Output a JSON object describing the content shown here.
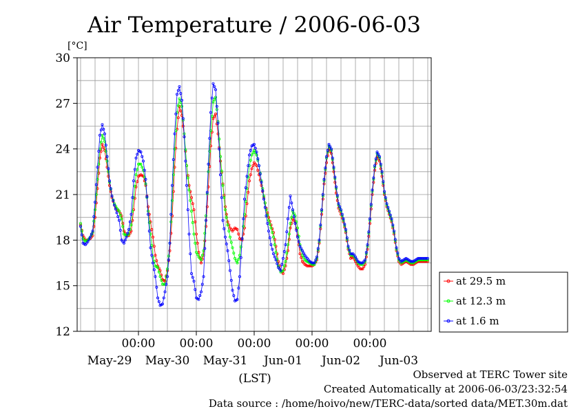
{
  "chart_data": {
    "type": "line",
    "title": "Air Temperature / 2006-06-03",
    "ylabel": "[°C]",
    "xlabel": "(LST)",
    "ylim": [
      12,
      30
    ],
    "yticks": [
      12,
      15,
      18,
      21,
      24,
      27,
      30
    ],
    "xlim_hours": [
      0,
      144
    ],
    "time_ticks": [
      "00:00",
      "00:00",
      "00:00",
      "00:00",
      "00:00"
    ],
    "date_labels": [
      "May-29",
      "May-30",
      "May-31",
      "Jun-01",
      "Jun-02",
      "Jun-03"
    ],
    "grid": true,
    "legend_position": "right",
    "series": [
      {
        "name": "at 29.5 m",
        "color": "#ff0000",
        "x": [
          0,
          1,
          2,
          3,
          4,
          5,
          6,
          7,
          8,
          9,
          10,
          11,
          12,
          13,
          14,
          15,
          16,
          17,
          18,
          19,
          20,
          21,
          22,
          23,
          24,
          25,
          26,
          27,
          28,
          29,
          30,
          31,
          32,
          33,
          34,
          35,
          36,
          37,
          38,
          39,
          40,
          41,
          42,
          43,
          44,
          45,
          46,
          47,
          48,
          49,
          50,
          51,
          52,
          53,
          54,
          55,
          56,
          57,
          58,
          59,
          60,
          61,
          62,
          63,
          64,
          65,
          66,
          67,
          68,
          69,
          70,
          71,
          72,
          73,
          74,
          75,
          76,
          77,
          78,
          79,
          80,
          81,
          82,
          83,
          84,
          85,
          86,
          87,
          88,
          89,
          90,
          91,
          92,
          93,
          94,
          95,
          96,
          97,
          98,
          99,
          100,
          101,
          102,
          103,
          104,
          105,
          106,
          107,
          108,
          109,
          110,
          111,
          112,
          113,
          114,
          115,
          116,
          117,
          118,
          119,
          120,
          121,
          122,
          123,
          124,
          125,
          126,
          127,
          128,
          129,
          130,
          131,
          132,
          133,
          134,
          135,
          136,
          137,
          138,
          139,
          140,
          141,
          142,
          143,
          144
        ],
        "values": [
          19.0,
          18.3,
          18.0,
          18.0,
          18.1,
          18.3,
          19.5,
          21.4,
          23.4,
          24.3,
          23.9,
          22.8,
          21.6,
          20.8,
          20.3,
          20.0,
          19.9,
          19.6,
          18.6,
          18.3,
          18.3,
          18.6,
          20.0,
          21.5,
          22.2,
          22.3,
          22.2,
          21.6,
          20.2,
          19.2,
          18.2,
          17.0,
          16.3,
          16.0,
          15.4,
          15.3,
          16.0,
          17.3,
          19.6,
          22.8,
          25.3,
          26.8,
          26.2,
          24.8,
          22.9,
          21.6,
          20.8,
          20.0,
          18.4,
          17.2,
          16.5,
          17.0,
          18.9,
          21.5,
          24.2,
          26.0,
          26.3,
          25.0,
          23.2,
          21.7,
          20.2,
          19.2,
          18.8,
          18.6,
          18.8,
          18.7,
          18.1,
          18.0,
          18.8,
          20.4,
          21.9,
          22.7,
          23.1,
          22.9,
          22.3,
          21.6,
          20.8,
          20.1,
          19.5,
          19.0,
          18.5,
          17.6,
          16.6,
          16.0,
          15.8,
          16.3,
          17.3,
          18.8,
          19.4,
          19.2,
          18.3,
          17.1,
          16.6,
          16.4,
          16.3,
          16.3,
          16.3,
          16.4,
          16.7,
          17.8,
          19.7,
          21.7,
          23.1,
          24.0,
          23.7,
          22.5,
          21.1,
          20.1,
          19.7,
          19.2,
          18.5,
          17.4,
          16.8,
          16.9,
          16.6,
          16.3,
          16.1,
          16.1,
          16.4,
          17.4,
          19.1,
          21.0,
          22.6,
          23.5,
          23.2,
          22.2,
          21.0,
          20.2,
          19.7,
          19.2,
          18.4,
          17.3,
          16.6,
          16.4,
          16.5,
          16.6,
          16.5,
          16.4,
          16.4,
          16.5,
          16.6,
          16.6,
          16.6,
          16.6,
          16.6
        ]
      },
      {
        "name": "at 12.3 m",
        "color": "#00ff00",
        "x": [
          0,
          1,
          2,
          3,
          4,
          5,
          6,
          7,
          8,
          9,
          10,
          11,
          12,
          13,
          14,
          15,
          16,
          17,
          18,
          19,
          20,
          21,
          22,
          23,
          24,
          25,
          26,
          27,
          28,
          29,
          30,
          31,
          32,
          33,
          34,
          35,
          36,
          37,
          38,
          39,
          40,
          41,
          42,
          43,
          44,
          45,
          46,
          47,
          48,
          49,
          50,
          51,
          52,
          53,
          54,
          55,
          56,
          57,
          58,
          59,
          60,
          61,
          62,
          63,
          64,
          65,
          66,
          67,
          68,
          69,
          70,
          71,
          72,
          73,
          74,
          75,
          76,
          77,
          78,
          79,
          80,
          81,
          82,
          83,
          84,
          85,
          86,
          87,
          88,
          89,
          90,
          91,
          92,
          93,
          94,
          95,
          96,
          97,
          98,
          99,
          100,
          101,
          102,
          103,
          104,
          105,
          106,
          107,
          108,
          109,
          110,
          111,
          112,
          113,
          114,
          115,
          116,
          117,
          118,
          119,
          120,
          121,
          122,
          123,
          124,
          125,
          126,
          127,
          128,
          129,
          130,
          131,
          132,
          133,
          134,
          135,
          136,
          137,
          138,
          139,
          140,
          141,
          142,
          143,
          144
        ],
        "values": [
          19.1,
          18.1,
          17.9,
          18.0,
          18.2,
          18.5,
          20.0,
          22.0,
          24.0,
          24.9,
          24.5,
          23.2,
          21.8,
          20.9,
          20.4,
          20.1,
          19.9,
          19.4,
          18.4,
          18.3,
          18.4,
          19.0,
          20.8,
          22.3,
          23.0,
          23.0,
          22.6,
          21.7,
          19.9,
          18.4,
          16.9,
          16.3,
          16.2,
          15.6,
          15.1,
          15.1,
          16.1,
          17.8,
          20.6,
          24.0,
          26.4,
          27.3,
          26.8,
          25.0,
          22.9,
          21.3,
          19.9,
          18.4,
          17.2,
          16.9,
          16.7,
          17.3,
          19.6,
          22.5,
          25.2,
          27.1,
          27.4,
          25.8,
          23.5,
          21.6,
          20.0,
          19.0,
          18.2,
          17.5,
          16.8,
          16.5,
          17.0,
          18.1,
          19.7,
          21.4,
          22.9,
          23.6,
          23.9,
          23.6,
          22.9,
          21.9,
          20.9,
          20.0,
          19.3,
          18.8,
          18.2,
          17.2,
          16.3,
          15.9,
          16.0,
          16.6,
          17.7,
          19.1,
          19.9,
          19.6,
          18.8,
          17.7,
          17.0,
          16.7,
          16.6,
          16.5,
          16.4,
          16.4,
          16.8,
          17.9,
          19.9,
          21.9,
          23.4,
          24.2,
          23.9,
          22.7,
          21.4,
          20.3,
          19.9,
          19.3,
          18.6,
          17.5,
          17.0,
          17.0,
          16.8,
          16.5,
          16.4,
          16.4,
          16.6,
          17.6,
          19.3,
          21.2,
          22.8,
          23.7,
          23.4,
          22.4,
          21.1,
          20.3,
          19.8,
          19.3,
          18.5,
          17.4,
          16.7,
          16.5,
          16.6,
          16.7,
          16.6,
          16.5,
          16.5,
          16.6,
          16.7,
          16.7,
          16.7,
          16.7,
          16.7
        ]
      },
      {
        "name": "at 1.6 m",
        "color": "#0000ff",
        "x": [
          0,
          1,
          2,
          3,
          4,
          5,
          6,
          7,
          8,
          9,
          10,
          11,
          12,
          13,
          14,
          15,
          16,
          17,
          18,
          19,
          20,
          21,
          22,
          23,
          24,
          25,
          26,
          27,
          28,
          29,
          30,
          31,
          32,
          33,
          34,
          35,
          36,
          37,
          38,
          39,
          40,
          41,
          42,
          43,
          44,
          45,
          46,
          47,
          48,
          49,
          50,
          51,
          52,
          53,
          54,
          55,
          56,
          57,
          58,
          59,
          60,
          61,
          62,
          63,
          64,
          65,
          66,
          67,
          68,
          69,
          70,
          71,
          72,
          73,
          74,
          75,
          76,
          77,
          78,
          79,
          80,
          81,
          82,
          83,
          84,
          85,
          86,
          87,
          88,
          89,
          90,
          91,
          92,
          93,
          94,
          95,
          96,
          97,
          98,
          99,
          100,
          101,
          102,
          103,
          104,
          105,
          106,
          107,
          108,
          109,
          110,
          111,
          112,
          113,
          114,
          115,
          116,
          117,
          118,
          119,
          120,
          121,
          122,
          123,
          124,
          125,
          126,
          127,
          128,
          129,
          130,
          131,
          132,
          133,
          134,
          135,
          136,
          137,
          138,
          139,
          140,
          141,
          142,
          143,
          144
        ],
        "values": [
          18.9,
          17.8,
          17.7,
          17.9,
          18.2,
          18.6,
          20.5,
          22.8,
          24.9,
          25.6,
          25.0,
          23.5,
          21.9,
          20.9,
          20.3,
          19.8,
          19.3,
          18.0,
          17.8,
          18.2,
          18.7,
          19.7,
          21.9,
          23.4,
          23.9,
          23.8,
          23.2,
          22.0,
          19.7,
          17.5,
          16.5,
          15.6,
          14.2,
          13.7,
          13.8,
          14.6,
          15.6,
          17.8,
          21.6,
          25.0,
          27.6,
          28.1,
          27.2,
          24.8,
          21.6,
          18.4,
          15.8,
          15.3,
          14.2,
          14.1,
          14.6,
          15.6,
          19.3,
          23.0,
          26.4,
          28.3,
          27.9,
          25.7,
          22.3,
          19.3,
          18.2,
          17.3,
          16.0,
          14.7,
          14.0,
          14.1,
          15.6,
          18.1,
          20.7,
          22.2,
          23.6,
          24.2,
          24.3,
          23.8,
          22.9,
          21.8,
          20.7,
          19.6,
          18.6,
          17.7,
          17.1,
          16.7,
          16.2,
          16.0,
          16.8,
          17.7,
          19.4,
          20.9,
          20.0,
          19.1,
          18.2,
          17.6,
          17.3,
          17.0,
          16.8,
          16.6,
          16.5,
          16.5,
          16.9,
          18.0,
          20.0,
          22.0,
          23.5,
          24.3,
          24.0,
          22.8,
          21.5,
          20.4,
          20.0,
          19.4,
          18.7,
          17.6,
          17.1,
          17.1,
          16.9,
          16.6,
          16.5,
          16.5,
          16.7,
          17.7,
          19.4,
          21.3,
          22.9,
          23.8,
          23.5,
          22.5,
          21.2,
          20.4,
          19.9,
          19.4,
          18.6,
          17.5,
          16.8,
          16.6,
          16.7,
          16.8,
          16.7,
          16.6,
          16.6,
          16.7,
          16.8,
          16.8,
          16.8,
          16.8,
          16.8
        ]
      }
    ]
  },
  "footer": {
    "line1": "Observed at TERC Tower site",
    "line2": "Created Automatically at 2006-06-03/23:32:54",
    "line3": "Data source : /home/hoivo/new/TERC-data/sorted  data/MET.30m.dat"
  }
}
